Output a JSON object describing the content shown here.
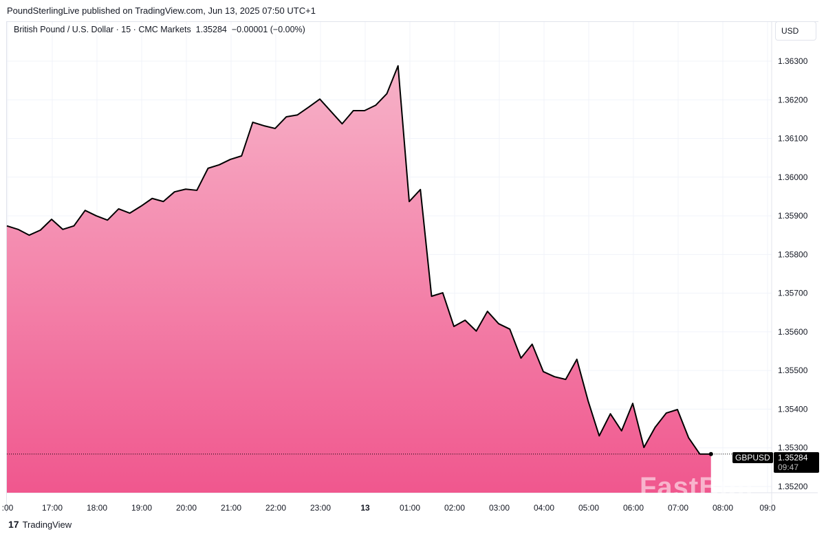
{
  "header": {
    "published": "PoundSterlingLive published on TradingView.com, Jun 13, 2025 07:50 UTC+1"
  },
  "legend": {
    "symbol": "British Pound / U.S. Dollar · 15 · CMC Markets",
    "price": "1.35284",
    "change": "−0.00001 (−0.00%)"
  },
  "currency_button": "USD",
  "price_tag": {
    "symbol": "GBPUSD",
    "price": "1.35284",
    "countdown": "09:47"
  },
  "footer": {
    "brand": "TradingView"
  },
  "watermark": "FastBull",
  "colors": {
    "line": "#000000",
    "fill_top": "#f7b2c8",
    "fill_bottom": "#f0578e"
  },
  "chart_data": {
    "type": "area",
    "y_ticks": [
      "1.36300",
      "1.36200",
      "1.36100",
      "1.36000",
      "1.35900",
      "1.35800",
      "1.35700",
      "1.35600",
      "1.35500",
      "1.35400",
      "1.35300",
      "1.35200"
    ],
    "x_ticks": [
      ":00",
      "17:00",
      "18:00",
      "19:00",
      "20:00",
      "21:00",
      "22:00",
      "23:00",
      "13",
      "01:00",
      "02:00",
      "03:00",
      "04:00",
      "05:00",
      "06:00",
      "07:00",
      "08:00",
      "09:0"
    ],
    "ylim": [
      1.3519,
      1.3637
    ],
    "grid": true,
    "x": [
      "16:00",
      "16:15",
      "16:30",
      "16:45",
      "17:00",
      "17:15",
      "17:30",
      "17:45",
      "18:00",
      "18:15",
      "18:30",
      "18:45",
      "19:00",
      "19:15",
      "19:30",
      "19:45",
      "20:00",
      "20:15",
      "20:30",
      "20:45",
      "21:00",
      "21:15",
      "21:30",
      "21:45",
      "22:00",
      "22:15",
      "22:30",
      "22:45",
      "23:00",
      "23:15",
      "23:30",
      "23:45",
      "00:00",
      "00:15",
      "00:30",
      "00:45",
      "01:00",
      "01:15",
      "01:30",
      "01:45",
      "02:00",
      "02:15",
      "02:30",
      "02:45",
      "03:00",
      "03:15",
      "03:30",
      "03:45",
      "04:00",
      "04:15",
      "04:30",
      "04:45",
      "05:00",
      "05:15",
      "05:30",
      "05:45",
      "06:00",
      "06:15",
      "06:30",
      "06:45",
      "07:00",
      "07:15",
      "07:30",
      "07:45"
    ],
    "values": [
      1.35874,
      1.35865,
      1.3585,
      1.35863,
      1.35891,
      1.35865,
      1.35874,
      1.35914,
      1.359,
      1.35889,
      1.35918,
      1.35907,
      1.35925,
      1.35945,
      1.35937,
      1.35962,
      1.35969,
      1.35966,
      1.36023,
      1.36032,
      1.36046,
      1.36055,
      1.36142,
      1.36133,
      1.36126,
      1.36156,
      1.36161,
      1.36181,
      1.36202,
      1.3617,
      1.36138,
      1.36172,
      1.36172,
      1.36186,
      1.36216,
      1.36288,
      1.35937,
      1.35968,
      1.35692,
      1.35701,
      1.35614,
      1.3563,
      1.35602,
      1.35653,
      1.35621,
      1.35607,
      1.35532,
      1.35568,
      1.35497,
      1.35484,
      1.35477,
      1.35529,
      1.35422,
      1.35331,
      1.35388,
      1.35344,
      1.35415,
      1.35301,
      1.35353,
      1.3539,
      1.35399,
      1.35326,
      1.35284,
      1.35284
    ],
    "last_price": 1.35284
  }
}
